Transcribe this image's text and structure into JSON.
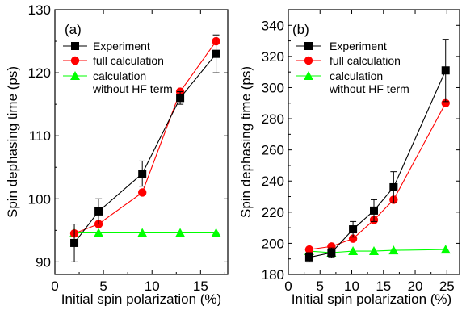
{
  "chart_data": [
    {
      "type": "line",
      "panel_label": "(a)",
      "xlabel": "Initial spin polarization (%)",
      "ylabel": "Spin dephasing time (ps)",
      "xlim": [
        0,
        17.8
      ],
      "ylim": [
        88,
        130
      ],
      "xticks": [
        0,
        5,
        10,
        15
      ],
      "yticks": [
        90,
        100,
        110,
        120,
        130
      ],
      "legend_position": "top-right",
      "series": [
        {
          "name": "Experiment",
          "color": "#000000",
          "marker": "square",
          "x": [
            2.0,
            4.5,
            9.0,
            12.9,
            16.6
          ],
          "y": [
            93.0,
            98.0,
            104.0,
            116.0,
            123.0
          ],
          "err": [
            3.0,
            2.0,
            2.0,
            1.0,
            3.0
          ]
        },
        {
          "name": "full calculation",
          "color": "#ff0000",
          "marker": "circle",
          "x": [
            2.0,
            4.5,
            9.0,
            12.9,
            16.6
          ],
          "y": [
            94.5,
            96.0,
            101.0,
            117.0,
            125.0
          ]
        },
        {
          "name": "calculation without HF term",
          "color": "#00ff00",
          "marker": "triangle",
          "x": [
            2.0,
            4.5,
            9.0,
            12.9,
            16.6
          ],
          "y": [
            94.6,
            94.6,
            94.6,
            94.6,
            94.6
          ]
        }
      ]
    },
    {
      "type": "line",
      "panel_label": "(b)",
      "xlabel": "Initial spin polarization (%)",
      "ylabel": "Spin dephasing time (ps)",
      "xlim": [
        0,
        27
      ],
      "ylim": [
        180,
        350
      ],
      "xticks": [
        0,
        5,
        10,
        15,
        20,
        25
      ],
      "yticks": [
        180,
        200,
        220,
        240,
        260,
        280,
        300,
        320,
        340
      ],
      "legend_position": "top-left",
      "series": [
        {
          "name": "Experiment",
          "color": "#000000",
          "marker": "square",
          "x": [
            3.3,
            6.8,
            10.2,
            13.5,
            16.6,
            24.8
          ],
          "y": [
            191,
            194,
            209,
            221,
            236,
            311
          ],
          "err": [
            3,
            3,
            5,
            7,
            10,
            20
          ]
        },
        {
          "name": "full calculation",
          "color": "#ff0000",
          "marker": "circle",
          "x": [
            3.3,
            6.8,
            10.2,
            13.5,
            16.6,
            24.8
          ],
          "y": [
            196,
            198,
            203,
            215,
            228,
            290
          ]
        },
        {
          "name": "calculation without HF term",
          "color": "#00ff00",
          "marker": "triangle",
          "x": [
            3.3,
            6.8,
            10.2,
            13.5,
            16.6,
            24.8
          ],
          "y": [
            195,
            194,
            195,
            195,
            195.5,
            196
          ]
        }
      ]
    }
  ],
  "legend": {
    "experiment": "Experiment",
    "full": "full calculation",
    "nohf_line1": "calculation",
    "nohf_line2": "without HF term"
  }
}
